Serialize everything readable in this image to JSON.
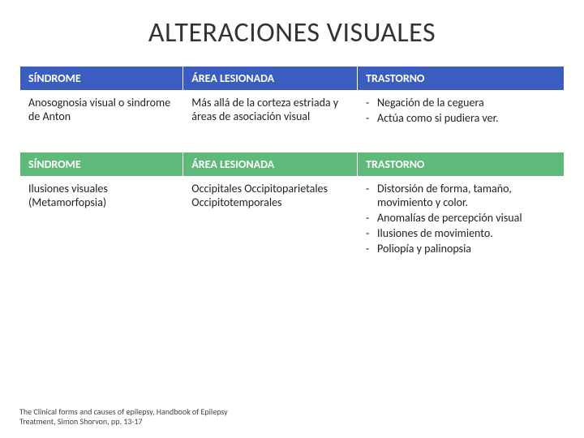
{
  "title": "ALTERACIONES VISUALES",
  "table1": {
    "header_bg": "#3a5dbf",
    "headers": [
      "SÍNDROME",
      "ÁREA LESIONADA",
      "TRASTORNO"
    ],
    "row": {
      "sindrome": "Anosognosia visual o sindrome de Anton",
      "area": "Más allá de la corteza estriada y áreas de asociación visual",
      "trastorno": [
        "Negación de la ceguera",
        "Actúa como si pudiera ver."
      ]
    }
  },
  "table2": {
    "header_bg": "#5fb97a",
    "headers": [
      "SÍNDROME",
      "ÁREA LESIONADA",
      "TRASTORNO"
    ],
    "row": {
      "sindrome": "Ilusiones visuales (Metamorfopsia)",
      "area": "Occipitales Occipitoparietales Occipitotemporales",
      "trastorno": [
        "Distorsión de forma, tamaño, movimiento y color.",
        "Anomalías de percepción visual",
        "Ilusiones de movimiento.",
        "Poliopía y palinopsia"
      ]
    }
  },
  "citation": "The Clinical forms and causes of epilepsy, Handbook of Epilepsy Treatment, Simon Shorvon, pp. 13-17"
}
